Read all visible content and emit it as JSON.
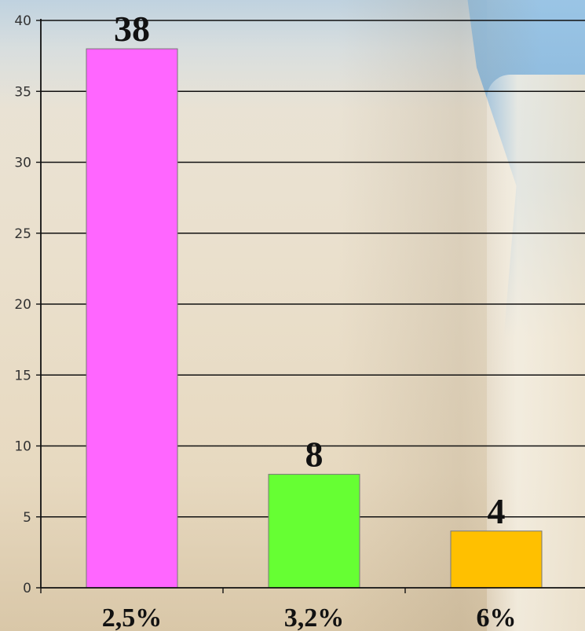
{
  "chart_data": {
    "type": "bar",
    "categories": [
      "2,5%",
      "3,2%",
      "6%"
    ],
    "values": [
      38,
      8,
      4
    ],
    "data_labels": [
      "38",
      "8",
      "4"
    ],
    "bar_colors": [
      "#ff66ff",
      "#66ff33",
      "#ffc000"
    ],
    "ylim": [
      0,
      40
    ],
    "yticks": [
      0,
      5,
      10,
      15,
      20,
      25,
      30,
      35,
      40
    ],
    "ytick_labels": [
      "0",
      "5",
      "10",
      "15",
      "20",
      "25",
      "30",
      "35",
      "40"
    ],
    "grid": true,
    "title": "",
    "xlabel": "",
    "ylabel": ""
  }
}
